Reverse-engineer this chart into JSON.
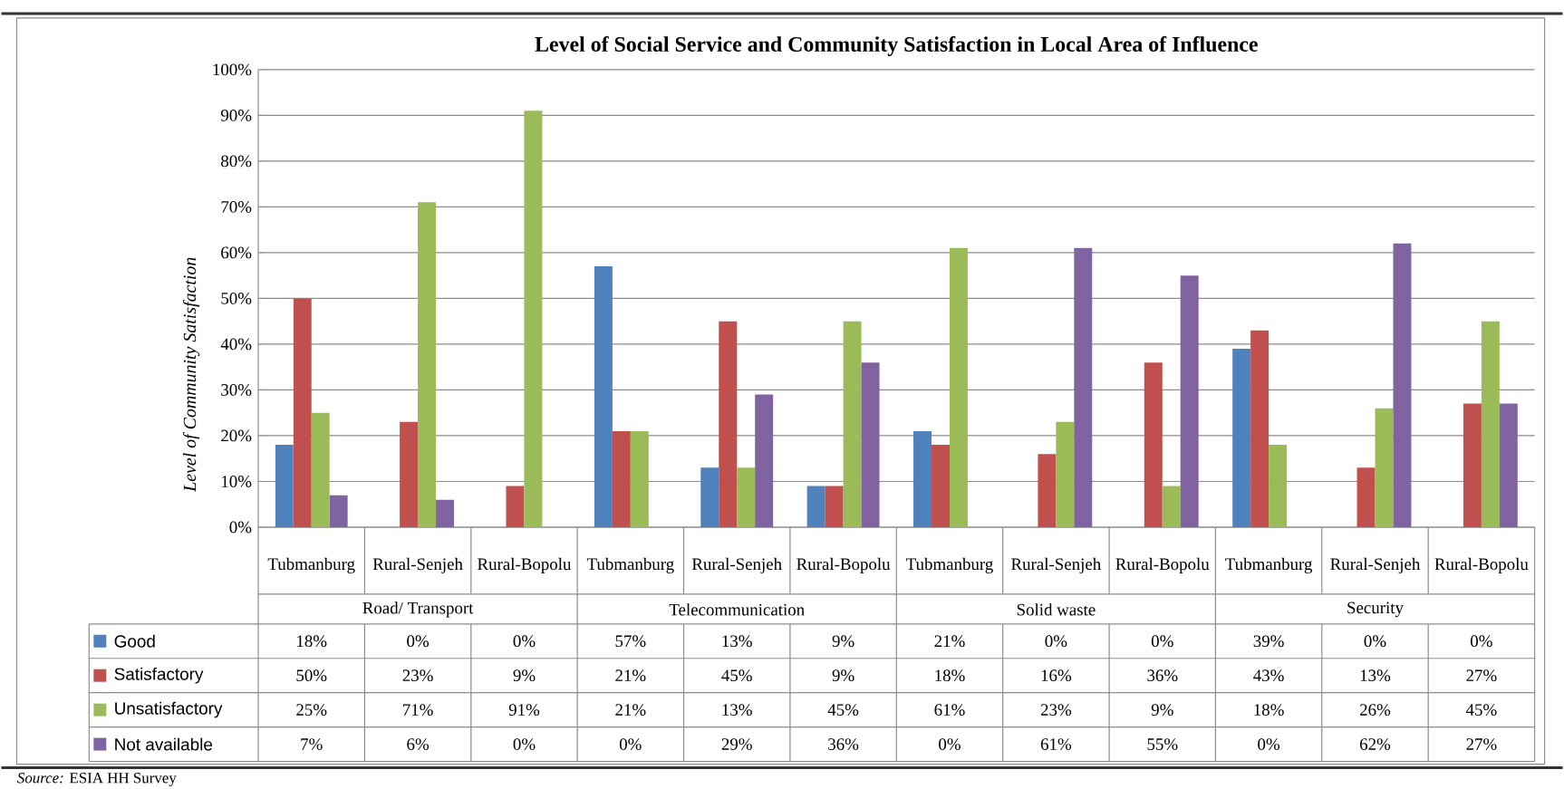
{
  "chart_data": {
    "type": "bar",
    "title": "Level of Social Service and Community Satisfaction in Local Area of Influence",
    "ylabel": "Level of Community Satisfaction",
    "categories": [
      "Tubmanburg",
      "Rural-Senjeh",
      "Rural-Bopolu",
      "Tubmanburg",
      "Rural-Senjeh",
      "Rural-Bopolu",
      "Tubmanburg",
      "Rural-Senjeh",
      "Rural-Bopolu",
      "Tubmanburg",
      "Rural-Senjeh",
      "Rural-Bopolu"
    ],
    "series": [
      {
        "name": "Good",
        "color": "#4f81bd",
        "values": [
          18,
          0,
          0,
          57,
          13,
          9,
          21,
          0,
          0,
          39,
          0,
          0
        ],
        "value_labels": [
          "18%",
          "0%",
          "0%",
          "57%",
          "13%",
          "9%",
          "21%",
          "0%",
          "0%",
          "39%",
          "0%",
          "0%"
        ]
      },
      {
        "name": "Satisfactory",
        "color": "#c0504d",
        "values": [
          50,
          23,
          9,
          21,
          45,
          9,
          18,
          16,
          36,
          43,
          13,
          27
        ],
        "value_labels": [
          "50%",
          "23%",
          "9%",
          "21%",
          "45%",
          "9%",
          "18%",
          "16%",
          "36%",
          "43%",
          "13%",
          "27%"
        ]
      },
      {
        "name": "Unsatisfactory",
        "color": "#9bbb59",
        "values": [
          25,
          71,
          91,
          21,
          13,
          45,
          61,
          23,
          9,
          18,
          26,
          45
        ],
        "value_labels": [
          "25%",
          "71%",
          "91%",
          "21%",
          "13%",
          "45%",
          "61%",
          "23%",
          "9%",
          "18%",
          "26%",
          "45%"
        ]
      },
      {
        "name": "Not available",
        "color": "#8064a2",
        "values": [
          7,
          6,
          0,
          0,
          29,
          36,
          0,
          61,
          55,
          0,
          62,
          27
        ],
        "value_labels": [
          "7%",
          "6%",
          "0%",
          "0%",
          "29%",
          "36%",
          "0%",
          "61%",
          "55%",
          "0%",
          "62%",
          "27%"
        ]
      }
    ],
    "ylim": [
      0,
      100
    ],
    "yticks": [
      {
        "value": 0,
        "label": "0%"
      },
      {
        "value": 10,
        "label": "10%"
      },
      {
        "value": 20,
        "label": "20%"
      },
      {
        "value": 30,
        "label": "30%"
      },
      {
        "value": 40,
        "label": "40%"
      },
      {
        "value": 50,
        "label": "50%"
      },
      {
        "value": 60,
        "label": "60%"
      },
      {
        "value": 70,
        "label": "70%"
      },
      {
        "value": 80,
        "label": "80%"
      },
      {
        "value": 90,
        "label": "90%"
      },
      {
        "value": 100,
        "label": "100%"
      }
    ],
    "grid": "y",
    "legend": "bottom",
    "annotations": [
      "Road/ Transport",
      "Telecommunication",
      "Solid waste",
      "Security",
      "*Source:* ESIA HH Survey"
    ]
  }
}
